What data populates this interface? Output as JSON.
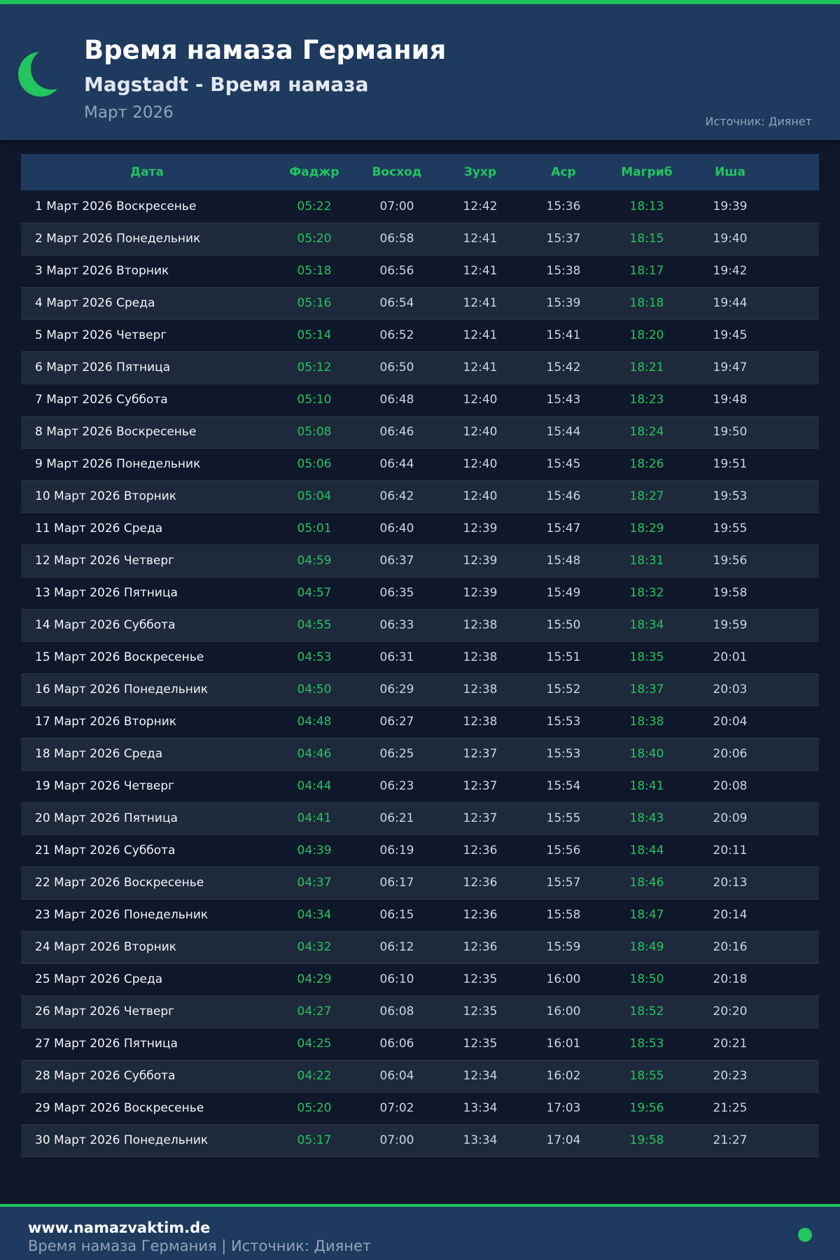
{
  "header": {
    "title": "Время намаза Германия",
    "subtitle": "Magstadt - Время намаза",
    "month": "Март 2026",
    "source": "Источник: Диянет"
  },
  "colors": {
    "accent": "#22c55e",
    "header_bg": "#1e3a5f",
    "page_bg": "#0f172a"
  },
  "table": {
    "columns": [
      "Дата",
      "Фаджр",
      "Восход",
      "Зухр",
      "Аср",
      "Магриб",
      "Иша"
    ],
    "rows": [
      [
        "1 Март 2026 Воскресенье",
        "05:22",
        "07:00",
        "12:42",
        "15:36",
        "18:13",
        "19:39"
      ],
      [
        "2 Март 2026 Понедельник",
        "05:20",
        "06:58",
        "12:41",
        "15:37",
        "18:15",
        "19:40"
      ],
      [
        "3 Март 2026 Вторник",
        "05:18",
        "06:56",
        "12:41",
        "15:38",
        "18:17",
        "19:42"
      ],
      [
        "4 Март 2026 Среда",
        "05:16",
        "06:54",
        "12:41",
        "15:39",
        "18:18",
        "19:44"
      ],
      [
        "5 Март 2026 Четверг",
        "05:14",
        "06:52",
        "12:41",
        "15:41",
        "18:20",
        "19:45"
      ],
      [
        "6 Март 2026 Пятница",
        "05:12",
        "06:50",
        "12:41",
        "15:42",
        "18:21",
        "19:47"
      ],
      [
        "7 Март 2026 Суббота",
        "05:10",
        "06:48",
        "12:40",
        "15:43",
        "18:23",
        "19:48"
      ],
      [
        "8 Март 2026 Воскресенье",
        "05:08",
        "06:46",
        "12:40",
        "15:44",
        "18:24",
        "19:50"
      ],
      [
        "9 Март 2026 Понедельник",
        "05:06",
        "06:44",
        "12:40",
        "15:45",
        "18:26",
        "19:51"
      ],
      [
        "10 Март 2026 Вторник",
        "05:04",
        "06:42",
        "12:40",
        "15:46",
        "18:27",
        "19:53"
      ],
      [
        "11 Март 2026 Среда",
        "05:01",
        "06:40",
        "12:39",
        "15:47",
        "18:29",
        "19:55"
      ],
      [
        "12 Март 2026 Четверг",
        "04:59",
        "06:37",
        "12:39",
        "15:48",
        "18:31",
        "19:56"
      ],
      [
        "13 Март 2026 Пятница",
        "04:57",
        "06:35",
        "12:39",
        "15:49",
        "18:32",
        "19:58"
      ],
      [
        "14 Март 2026 Суббота",
        "04:55",
        "06:33",
        "12:38",
        "15:50",
        "18:34",
        "19:59"
      ],
      [
        "15 Март 2026 Воскресенье",
        "04:53",
        "06:31",
        "12:38",
        "15:51",
        "18:35",
        "20:01"
      ],
      [
        "16 Март 2026 Понедельник",
        "04:50",
        "06:29",
        "12:38",
        "15:52",
        "18:37",
        "20:03"
      ],
      [
        "17 Март 2026 Вторник",
        "04:48",
        "06:27",
        "12:38",
        "15:53",
        "18:38",
        "20:04"
      ],
      [
        "18 Март 2026 Среда",
        "04:46",
        "06:25",
        "12:37",
        "15:53",
        "18:40",
        "20:06"
      ],
      [
        "19 Март 2026 Четверг",
        "04:44",
        "06:23",
        "12:37",
        "15:54",
        "18:41",
        "20:08"
      ],
      [
        "20 Март 2026 Пятница",
        "04:41",
        "06:21",
        "12:37",
        "15:55",
        "18:43",
        "20:09"
      ],
      [
        "21 Март 2026 Суббота",
        "04:39",
        "06:19",
        "12:36",
        "15:56",
        "18:44",
        "20:11"
      ],
      [
        "22 Март 2026 Воскресенье",
        "04:37",
        "06:17",
        "12:36",
        "15:57",
        "18:46",
        "20:13"
      ],
      [
        "23 Март 2026 Понедельник",
        "04:34",
        "06:15",
        "12:36",
        "15:58",
        "18:47",
        "20:14"
      ],
      [
        "24 Март 2026 Вторник",
        "04:32",
        "06:12",
        "12:36",
        "15:59",
        "18:49",
        "20:16"
      ],
      [
        "25 Март 2026 Среда",
        "04:29",
        "06:10",
        "12:35",
        "16:00",
        "18:50",
        "20:18"
      ],
      [
        "26 Март 2026 Четверг",
        "04:27",
        "06:08",
        "12:35",
        "16:00",
        "18:52",
        "20:20"
      ],
      [
        "27 Март 2026 Пятница",
        "04:25",
        "06:06",
        "12:35",
        "16:01",
        "18:53",
        "20:21"
      ],
      [
        "28 Март 2026 Суббота",
        "04:22",
        "06:04",
        "12:34",
        "16:02",
        "18:55",
        "20:23"
      ],
      [
        "29 Март 2026 Воскресенье",
        "05:20",
        "07:02",
        "13:34",
        "17:03",
        "19:56",
        "21:25"
      ],
      [
        "30 Март 2026 Понедельник",
        "05:17",
        "07:00",
        "13:34",
        "17:04",
        "19:58",
        "21:27"
      ]
    ]
  },
  "footer": {
    "site": "www.namazvaktim.de",
    "text": "Время намаза Германия | Источник: Диянет"
  }
}
